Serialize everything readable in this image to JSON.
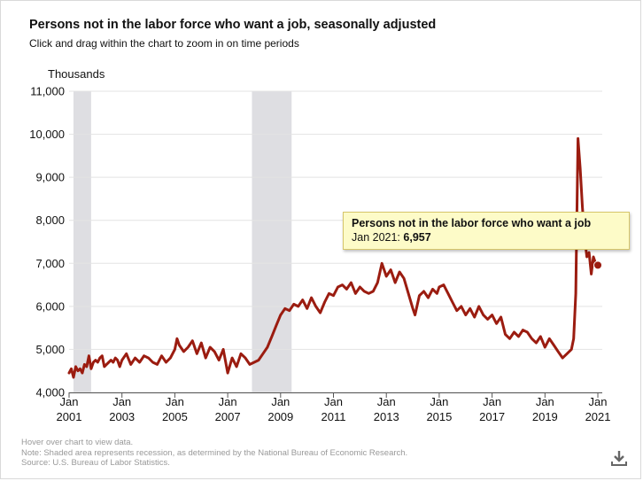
{
  "title": "Persons not in the labor force who want a job, seasonally adjusted",
  "subtitle": "Click and drag within the chart to zoom in on time periods",
  "footer": {
    "hover_note": "Hover over chart to view data.",
    "recession_note": "Note: Shaded area represents recession, as determined by the National Bureau of Economic Research.",
    "source": "Source: U.S. Bureau of Labor Statistics."
  },
  "download_icon": "download-icon",
  "tooltip": {
    "series": "Persons not in the labor force who want a job",
    "date": "Jan 2021:",
    "value": "6,957"
  },
  "colors": {
    "line": "#9b1c10",
    "recession": "#dedee2",
    "grid": "#e3e3e3",
    "tooltip_bg": "#fdfbc8"
  },
  "chart_data": {
    "type": "line",
    "ylabel": "Thousands",
    "xlabel": "",
    "ylim": [
      4000,
      11000
    ],
    "xlim": [
      "2001-01",
      "2021-03"
    ],
    "y_ticks": [
      4000,
      5000,
      6000,
      7000,
      8000,
      9000,
      10000,
      11000
    ],
    "y_tick_labels": [
      "4,000",
      "5,000",
      "6,000",
      "7,000",
      "8,000",
      "9,000",
      "10,000",
      "11,000"
    ],
    "x_ticks": [
      "2001-01",
      "2003-01",
      "2005-01",
      "2007-01",
      "2009-01",
      "2011-01",
      "2013-01",
      "2015-01",
      "2017-01",
      "2019-01",
      "2021-01"
    ],
    "x_tick_labels": [
      [
        "Jan",
        "2001"
      ],
      [
        "Jan",
        "2003"
      ],
      [
        "Jan",
        "2005"
      ],
      [
        "Jan",
        "2007"
      ],
      [
        "Jan",
        "2009"
      ],
      [
        "Jan",
        "2011"
      ],
      [
        "Jan",
        "2013"
      ],
      [
        "Jan",
        "2015"
      ],
      [
        "Jan",
        "2017"
      ],
      [
        "Jan",
        "2019"
      ],
      [
        "Jan",
        "2021"
      ]
    ],
    "grid": "horizontal",
    "recessions": [
      [
        "2001-03",
        "2001-11"
      ],
      [
        "2007-12",
        "2009-06"
      ]
    ],
    "highlight": {
      "x": "2021-01",
      "y": 6957
    },
    "series": [
      {
        "name": "Persons not in the labor force who want a job",
        "points": [
          [
            "2001-01",
            4450
          ],
          [
            "2001-02",
            4550
          ],
          [
            "2001-03",
            4350
          ],
          [
            "2001-04",
            4600
          ],
          [
            "2001-05",
            4500
          ],
          [
            "2001-06",
            4550
          ],
          [
            "2001-07",
            4450
          ],
          [
            "2001-08",
            4650
          ],
          [
            "2001-09",
            4600
          ],
          [
            "2001-10",
            4850
          ],
          [
            "2001-11",
            4550
          ],
          [
            "2001-12",
            4700
          ],
          [
            "2002-01",
            4750
          ],
          [
            "2002-02",
            4700
          ],
          [
            "2002-03",
            4800
          ],
          [
            "2002-04",
            4850
          ],
          [
            "2002-05",
            4600
          ],
          [
            "2002-06",
            4650
          ],
          [
            "2002-07",
            4700
          ],
          [
            "2002-08",
            4750
          ],
          [
            "2002-09",
            4700
          ],
          [
            "2002-10",
            4800
          ],
          [
            "2002-11",
            4750
          ],
          [
            "2002-12",
            4600
          ],
          [
            "2003-01",
            4750
          ],
          [
            "2003-03",
            4900
          ],
          [
            "2003-05",
            4650
          ],
          [
            "2003-07",
            4800
          ],
          [
            "2003-09",
            4700
          ],
          [
            "2003-11",
            4850
          ],
          [
            "2004-01",
            4800
          ],
          [
            "2004-03",
            4700
          ],
          [
            "2004-05",
            4650
          ],
          [
            "2004-07",
            4850
          ],
          [
            "2004-09",
            4700
          ],
          [
            "2004-11",
            4800
          ],
          [
            "2005-01",
            5000
          ],
          [
            "2005-02",
            5250
          ],
          [
            "2005-03",
            5100
          ],
          [
            "2005-05",
            4950
          ],
          [
            "2005-07",
            5050
          ],
          [
            "2005-09",
            5200
          ],
          [
            "2005-11",
            4900
          ],
          [
            "2006-01",
            5150
          ],
          [
            "2006-03",
            4800
          ],
          [
            "2006-05",
            5050
          ],
          [
            "2006-07",
            4950
          ],
          [
            "2006-09",
            4750
          ],
          [
            "2006-11",
            5000
          ],
          [
            "2007-01",
            4450
          ],
          [
            "2007-03",
            4800
          ],
          [
            "2007-05",
            4600
          ],
          [
            "2007-07",
            4900
          ],
          [
            "2007-09",
            4800
          ],
          [
            "2007-11",
            4650
          ],
          [
            "2008-01",
            4700
          ],
          [
            "2008-03",
            4750
          ],
          [
            "2008-05",
            4900
          ],
          [
            "2008-07",
            5050
          ],
          [
            "2008-09",
            5300
          ],
          [
            "2008-11",
            5550
          ],
          [
            "2009-01",
            5800
          ],
          [
            "2009-03",
            5950
          ],
          [
            "2009-05",
            5900
          ],
          [
            "2009-07",
            6050
          ],
          [
            "2009-09",
            6000
          ],
          [
            "2009-11",
            6150
          ],
          [
            "2010-01",
            5950
          ],
          [
            "2010-03",
            6200
          ],
          [
            "2010-05",
            6000
          ],
          [
            "2010-07",
            5850
          ],
          [
            "2010-09",
            6100
          ],
          [
            "2010-11",
            6300
          ],
          [
            "2011-01",
            6250
          ],
          [
            "2011-03",
            6450
          ],
          [
            "2011-05",
            6500
          ],
          [
            "2011-07",
            6400
          ],
          [
            "2011-09",
            6550
          ],
          [
            "2011-11",
            6300
          ],
          [
            "2012-01",
            6450
          ],
          [
            "2012-03",
            6350
          ],
          [
            "2012-05",
            6300
          ],
          [
            "2012-07",
            6350
          ],
          [
            "2012-09",
            6550
          ],
          [
            "2012-11",
            7000
          ],
          [
            "2013-01",
            6700
          ],
          [
            "2013-03",
            6850
          ],
          [
            "2013-05",
            6550
          ],
          [
            "2013-07",
            6800
          ],
          [
            "2013-09",
            6650
          ],
          [
            "2013-11",
            6300
          ],
          [
            "2014-01",
            5950
          ],
          [
            "2014-02",
            5800
          ],
          [
            "2014-04",
            6250
          ],
          [
            "2014-06",
            6350
          ],
          [
            "2014-08",
            6200
          ],
          [
            "2014-10",
            6400
          ],
          [
            "2014-12",
            6300
          ],
          [
            "2015-01",
            6450
          ],
          [
            "2015-03",
            6500
          ],
          [
            "2015-05",
            6300
          ],
          [
            "2015-07",
            6100
          ],
          [
            "2015-09",
            5900
          ],
          [
            "2015-11",
            6000
          ],
          [
            "2016-01",
            5800
          ],
          [
            "2016-03",
            5950
          ],
          [
            "2016-05",
            5750
          ],
          [
            "2016-07",
            6000
          ],
          [
            "2016-09",
            5800
          ],
          [
            "2016-11",
            5700
          ],
          [
            "2017-01",
            5800
          ],
          [
            "2017-03",
            5600
          ],
          [
            "2017-05",
            5750
          ],
          [
            "2017-07",
            5350
          ],
          [
            "2017-09",
            5250
          ],
          [
            "2017-11",
            5400
          ],
          [
            "2018-01",
            5300
          ],
          [
            "2018-03",
            5450
          ],
          [
            "2018-05",
            5400
          ],
          [
            "2018-07",
            5250
          ],
          [
            "2018-09",
            5150
          ],
          [
            "2018-11",
            5300
          ],
          [
            "2019-01",
            5050
          ],
          [
            "2019-03",
            5250
          ],
          [
            "2019-05",
            5100
          ],
          [
            "2019-07",
            4950
          ],
          [
            "2019-09",
            4800
          ],
          [
            "2019-11",
            4900
          ],
          [
            "2020-01",
            5000
          ],
          [
            "2020-02",
            5250
          ],
          [
            "2020-03",
            6300
          ],
          [
            "2020-04",
            9900
          ],
          [
            "2020-05",
            9200
          ],
          [
            "2020-06",
            8300
          ],
          [
            "2020-07",
            7600
          ],
          [
            "2020-08",
            7150
          ],
          [
            "2020-09",
            7250
          ],
          [
            "2020-10",
            6750
          ],
          [
            "2020-11",
            7150
          ],
          [
            "2020-12",
            7000
          ],
          [
            "2021-01",
            6957
          ]
        ]
      }
    ]
  }
}
